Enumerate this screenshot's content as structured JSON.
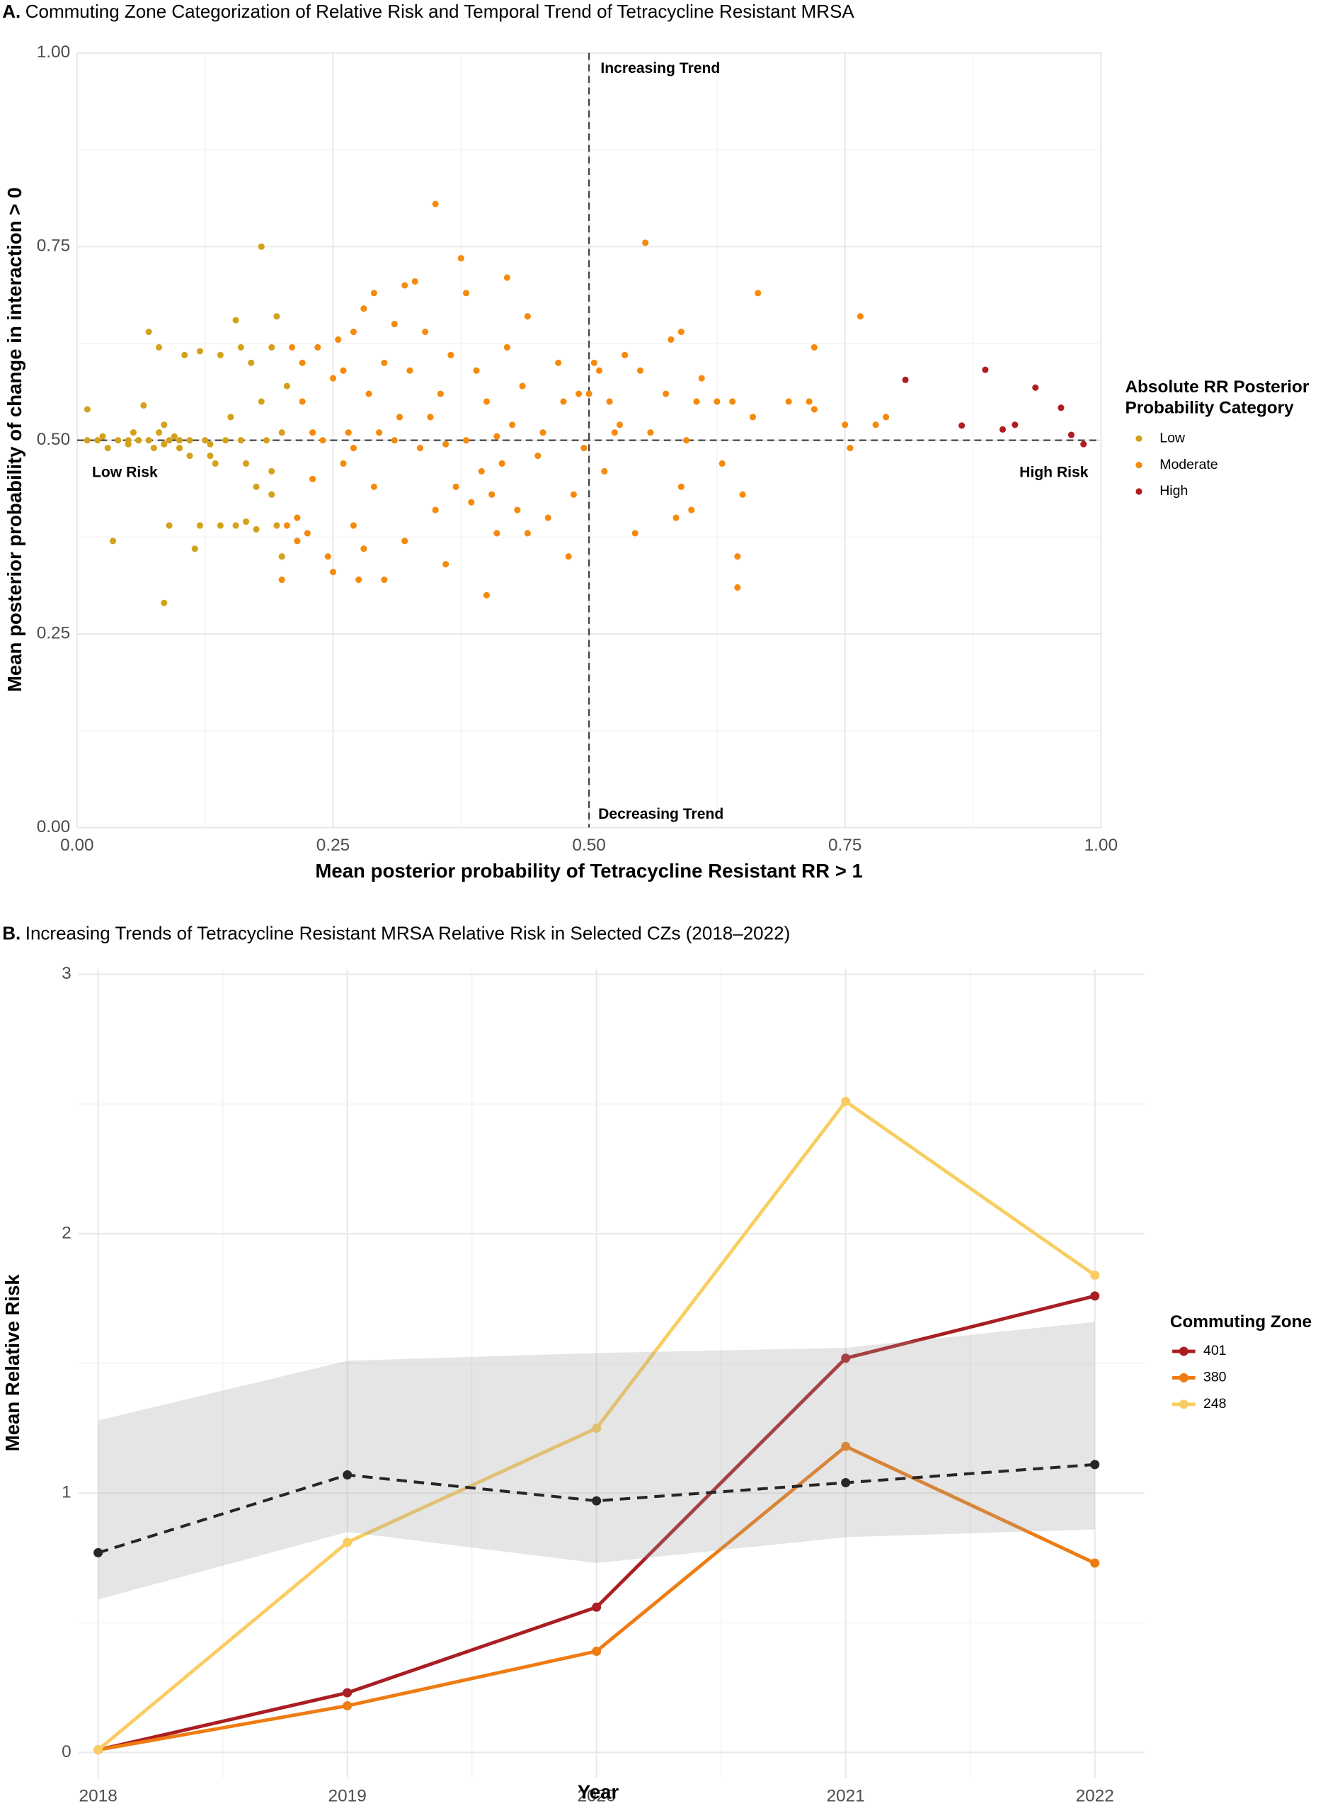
{
  "chart_data": [
    {
      "type": "scatter",
      "panel_label": "A.",
      "title": "Commuting Zone Categorization of Relative Risk and Temporal Trend of Tetracycline Resistant MRSA",
      "x_label": "Mean posterior probability of Tetracycline Resistant RR > 1",
      "y_label": "Mean posterior probability of change in interaction > 0",
      "xlim": [
        0,
        1
      ],
      "ylim": [
        0,
        1
      ],
      "xticks": [
        {
          "value": 0,
          "label": "0.00"
        },
        {
          "value": 0.25,
          "label": "0.25"
        },
        {
          "value": 0.5,
          "label": "0.50"
        },
        {
          "value": 0.75,
          "label": "0.75"
        },
        {
          "value": 1,
          "label": "1.00"
        }
      ],
      "yticks": [
        {
          "value": 0,
          "label": "0.00"
        },
        {
          "value": 0.25,
          "label": "0.25"
        },
        {
          "value": 0.5,
          "label": "0.50"
        },
        {
          "value": 0.75,
          "label": "0.75"
        },
        {
          "value": 1,
          "label": "1.00"
        }
      ],
      "xminor": [
        0.125,
        0.375,
        0.625,
        0.875
      ],
      "yminor": [
        0.125,
        0.375,
        0.625,
        0.875
      ],
      "grid": true,
      "hline": 0.5,
      "vline": 0.5,
      "annotations": [
        "Increasing Trend",
        "Decreasing Trend",
        "Low Risk",
        "High Risk"
      ],
      "legend_title": [
        "Absolute RR Posterior",
        "Probability Category"
      ],
      "series": [
        {
          "name": "Low",
          "color": "#d4a21a",
          "x": [
            0.01,
            0.01,
            0.02,
            0.03,
            0.035,
            0.04,
            0.05,
            0.055,
            0.06,
            0.065,
            0.07,
            0.07,
            0.075,
            0.08,
            0.08,
            0.085,
            0.085,
            0.09,
            0.09,
            0.095,
            0.1,
            0.105,
            0.11,
            0.115,
            0.12,
            0.12,
            0.125,
            0.13,
            0.13,
            0.135,
            0.14,
            0.145,
            0.15,
            0.155,
            0.155,
            0.16,
            0.165,
            0.165,
            0.17,
            0.175,
            0.18,
            0.18,
            0.185,
            0.19,
            0.19,
            0.195,
            0.195,
            0.2,
            0.2,
            0.205,
            0.19,
            0.175,
            0.16,
            0.14,
            0.11,
            0.06,
            0.05,
            0.025,
            0.1,
            0.085
          ],
          "y": [
            0.54,
            0.5,
            0.5,
            0.49,
            0.37,
            0.5,
            0.5,
            0.51,
            0.5,
            0.545,
            0.64,
            0.5,
            0.49,
            0.51,
            0.62,
            0.52,
            0.29,
            0.5,
            0.39,
            0.505,
            0.49,
            0.61,
            0.5,
            0.36,
            0.39,
            0.615,
            0.5,
            0.48,
            0.495,
            0.47,
            0.61,
            0.5,
            0.53,
            0.655,
            0.39,
            0.62,
            0.47,
            0.395,
            0.6,
            0.385,
            0.55,
            0.75,
            0.5,
            0.46,
            0.62,
            0.66,
            0.39,
            0.35,
            0.51,
            0.57,
            0.43,
            0.44,
            0.5,
            0.39,
            0.48,
            0.5,
            0.495,
            0.505,
            0.5,
            0.495
          ]
        },
        {
          "name": "Moderate",
          "color": "#f58a0c",
          "x": [
            0.2,
            0.205,
            0.21,
            0.215,
            0.22,
            0.225,
            0.23,
            0.235,
            0.24,
            0.245,
            0.25,
            0.25,
            0.255,
            0.26,
            0.26,
            0.265,
            0.27,
            0.27,
            0.275,
            0.28,
            0.285,
            0.29,
            0.29,
            0.295,
            0.3,
            0.3,
            0.31,
            0.315,
            0.32,
            0.32,
            0.325,
            0.33,
            0.335,
            0.34,
            0.345,
            0.35,
            0.35,
            0.355,
            0.36,
            0.365,
            0.37,
            0.375,
            0.38,
            0.38,
            0.385,
            0.39,
            0.395,
            0.4,
            0.4,
            0.405,
            0.41,
            0.415,
            0.42,
            0.42,
            0.425,
            0.43,
            0.435,
            0.44,
            0.44,
            0.45,
            0.455,
            0.46,
            0.47,
            0.475,
            0.48,
            0.485,
            0.49,
            0.495,
            0.5,
            0.505,
            0.51,
            0.515,
            0.52,
            0.525,
            0.53,
            0.535,
            0.545,
            0.55,
            0.555,
            0.56,
            0.575,
            0.58,
            0.585,
            0.59,
            0.59,
            0.595,
            0.6,
            0.605,
            0.61,
            0.625,
            0.63,
            0.64,
            0.645,
            0.645,
            0.65,
            0.66,
            0.665,
            0.695,
            0.715,
            0.72,
            0.72,
            0.75,
            0.755,
            0.765,
            0.78,
            0.79,
            0.27,
            0.31,
            0.36,
            0.41,
            0.23,
            0.22,
            0.28,
            0.215
          ],
          "y": [
            0.32,
            0.39,
            0.62,
            0.4,
            0.55,
            0.38,
            0.45,
            0.62,
            0.5,
            0.35,
            0.33,
            0.58,
            0.63,
            0.47,
            0.59,
            0.51,
            0.39,
            0.64,
            0.32,
            0.67,
            0.56,
            0.69,
            0.44,
            0.51,
            0.32,
            0.6,
            0.65,
            0.53,
            0.7,
            0.37,
            0.59,
            0.705,
            0.49,
            0.64,
            0.53,
            0.805,
            0.41,
            0.56,
            0.34,
            0.61,
            0.44,
            0.735,
            0.69,
            0.5,
            0.42,
            0.59,
            0.46,
            0.3,
            0.55,
            0.43,
            0.38,
            0.47,
            0.71,
            0.62,
            0.52,
            0.41,
            0.57,
            0.38,
            0.66,
            0.48,
            0.51,
            0.4,
            0.6,
            0.55,
            0.35,
            0.43,
            0.56,
            0.49,
            0.56,
            0.6,
            0.59,
            0.46,
            0.55,
            0.51,
            0.52,
            0.61,
            0.38,
            0.59,
            0.755,
            0.51,
            0.56,
            0.63,
            0.4,
            0.44,
            0.64,
            0.5,
            0.41,
            0.55,
            0.58,
            0.55,
            0.47,
            0.55,
            0.35,
            0.31,
            0.43,
            0.53,
            0.69,
            0.55,
            0.55,
            0.54,
            0.62,
            0.52,
            0.49,
            0.66,
            0.52,
            0.53,
            0.49,
            0.5,
            0.495,
            0.505,
            0.51,
            0.6,
            0.36,
            0.37
          ]
        },
        {
          "name": "High",
          "color": "#b01e23",
          "x": [
            0.809,
            0.864,
            0.887,
            0.904,
            0.916,
            0.936,
            0.961,
            0.971,
            0.983
          ],
          "y": [
            0.578,
            0.519,
            0.591,
            0.514,
            0.52,
            0.568,
            0.542,
            0.507,
            0.495
          ]
        }
      ]
    },
    {
      "type": "line",
      "panel_label": "B.",
      "title": "Increasing Trends of Tetracycline Resistant MRSA Relative Risk in Selected CZs (2018–2022)",
      "x_label": "Year",
      "y_label": "Mean Relative Risk",
      "legend_title": "Commuting Zone",
      "x": [
        2018,
        2019,
        2020,
        2021,
        2022
      ],
      "xlim": [
        2017.92,
        2022.2
      ],
      "ylim": [
        -0.1,
        3.02
      ],
      "xticks": [
        2018,
        2019,
        2020,
        2021,
        2022
      ],
      "yticks": [
        0,
        1,
        2,
        3
      ],
      "xminor": [
        2018.5,
        2019.5,
        2020.5,
        2021.5
      ],
      "yminor": [
        0.5,
        1.5,
        2.5
      ],
      "grid": true,
      "series": [
        {
          "name": "401",
          "color": "#a91e22",
          "values": [
            0.01,
            0.23,
            0.56,
            1.52,
            1.76
          ]
        },
        {
          "name": "380",
          "color": "#ee7c12",
          "values": [
            0.01,
            0.18,
            0.39,
            1.18,
            0.73
          ]
        },
        {
          "name": "248",
          "color": "#f9cd62",
          "values": [
            0.01,
            0.81,
            1.25,
            2.51,
            1.84
          ]
        }
      ],
      "mean_trend": {
        "color": "#262626",
        "values": [
          0.77,
          1.07,
          0.97,
          1.04,
          1.11
        ]
      },
      "band": {
        "color": "#a0a0a0",
        "lower": [
          0.59,
          0.85,
          0.73,
          0.83,
          0.86
        ],
        "upper": [
          1.28,
          1.51,
          1.54,
          1.56,
          1.66
        ]
      }
    }
  ]
}
